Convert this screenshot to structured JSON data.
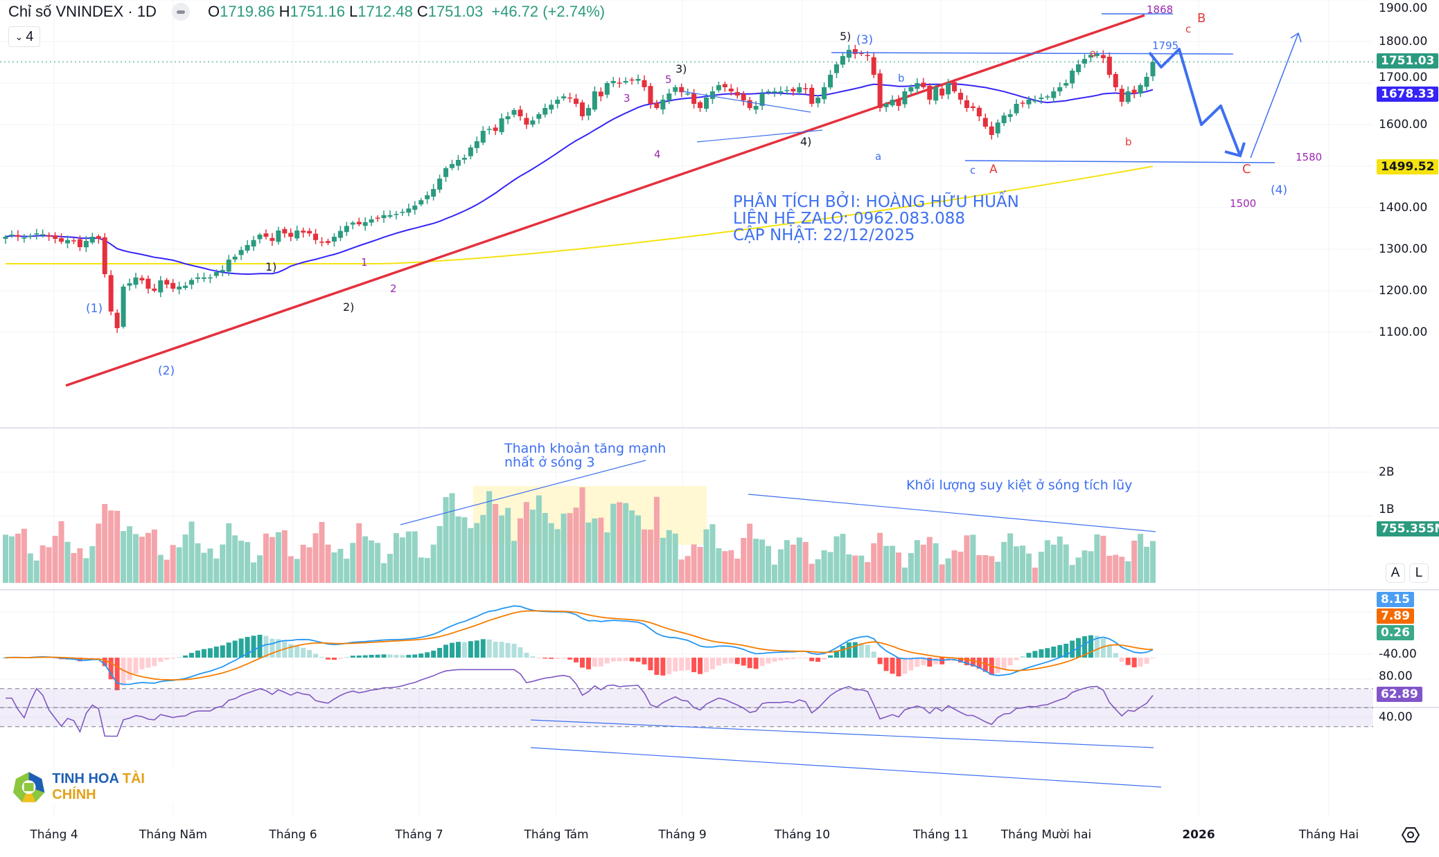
{
  "header": {
    "title": "Chỉ số VNINDEX · 1D",
    "open_label": "O",
    "open": "1719.86",
    "high_label": "H",
    "high": "1751.16",
    "low_label": "L",
    "low": "1712.48",
    "close_label": "C",
    "close": "1751.03",
    "change": "+46.72 (+2.74%)",
    "collapse_count": "4"
  },
  "price_axis": {
    "ticks": [
      "1900.00",
      "1800.00",
      "1700.00",
      "1600.00",
      "1400.00",
      "1300.00",
      "1200.00",
      "1100.00"
    ],
    "badges": [
      {
        "name": "last-price-badge",
        "value": "1751.03",
        "color": "#2b9a7f"
      },
      {
        "name": "ma50-badge",
        "value": "1678.33",
        "color": "#3524f5"
      },
      {
        "name": "ma200-badge",
        "value": "1499.52",
        "color": "#f5e20f"
      }
    ]
  },
  "volume_axis": {
    "ticks": [
      "2B",
      "1B"
    ],
    "badge": "755.355M",
    "auto_label": "A",
    "log_label": "L"
  },
  "macd_axis": {
    "ticks": [
      "-40.00"
    ],
    "badges": [
      {
        "value": "8.15",
        "color": "#4b9ef3"
      },
      {
        "value": "7.89",
        "color": "#f56a00"
      },
      {
        "value": "0.26",
        "color": "#3aa889"
      }
    ]
  },
  "rsi_axis": {
    "ticks": [
      "80.00",
      "40.00"
    ],
    "badge": "62.89",
    "badge_color": "#8155c9"
  },
  "time_axis": [
    "Tháng 4",
    "Tháng Năm",
    "Tháng 6",
    "Tháng 7",
    "Tháng Tám",
    "Tháng 9",
    "Tháng 10",
    "Tháng 11",
    "Tháng Mười hai",
    "2026",
    "Tháng Hai"
  ],
  "annotations": {
    "analyst_line1": "PHÂN TÍCH BỞI: HOÀNG HỮU HUẤN",
    "analyst_line2": "LIÊN HỆ ZALO: 0962.083.088",
    "analyst_line3": "CẬP NHẬT: 22/12/2025",
    "volume_note1_line1": "Thanh khoản tăng mạnh",
    "volume_note1_line2": "nhất ở sóng 3",
    "volume_note2": "Khối lượng suy kiệt ở sóng tích lũy",
    "level_1868": "1868",
    "level_1795": "1795",
    "level_1580": "1580",
    "level_1500": "1500",
    "waves": [
      {
        "text": "(1)",
        "color": "#3d6ff0"
      },
      {
        "text": "(2)",
        "color": "#3d6ff0"
      },
      {
        "text": "(3)",
        "color": "#3d6ff0"
      },
      {
        "text": "(4)",
        "color": "#3d6ff0"
      },
      {
        "text": "1)",
        "color": "#131722"
      },
      {
        "text": "2)",
        "color": "#131722"
      },
      {
        "text": "3)",
        "color": "#131722"
      },
      {
        "text": "4)",
        "color": "#131722"
      },
      {
        "text": "5)",
        "color": "#131722"
      },
      {
        "text": "1",
        "color": "#9c27b0"
      },
      {
        "text": "2",
        "color": "#9c27b0"
      },
      {
        "text": "3",
        "color": "#9c27b0"
      },
      {
        "text": "4",
        "color": "#9c27b0"
      },
      {
        "text": "5",
        "color": "#9c27b0"
      },
      {
        "text": "a",
        "color": "#3d6ff0"
      },
      {
        "text": "b",
        "color": "#3d6ff0"
      },
      {
        "text": "c",
        "color": "#3d6ff0"
      },
      {
        "text": "A",
        "color": "#e53935"
      },
      {
        "text": "a",
        "color": "#e53935"
      },
      {
        "text": "b",
        "color": "#e53935"
      },
      {
        "text": "c",
        "color": "#e53935"
      },
      {
        "text": "B",
        "color": "#e53935"
      },
      {
        "text": "C",
        "color": "#e53935"
      }
    ]
  },
  "logo": {
    "part1": "TINH HOA",
    "part2": "TÀI CHÍNH"
  },
  "colors": {
    "up": "#2b9a7f",
    "down": "#e5303d",
    "vol_up": "#93d3c4",
    "vol_down": "#f4a4aa",
    "ma50": "#3524f5",
    "ma200": "#f5e20f",
    "trend": "#e5303d",
    "annot": "#3d6ff0",
    "rsi": "#7e57c2"
  },
  "chart_data": {
    "type": "candlestick",
    "title": "Chỉ số VNINDEX · 1D",
    "ylim": [
      1080,
      1900
    ],
    "x_range": [
      "2025-03",
      "2026-02"
    ],
    "close_path": [
      1330,
      1335,
      1330,
      1328,
      1332,
      1338,
      1336,
      1330,
      1325,
      1318,
      1322,
      1320,
      1305,
      1320,
      1330,
      1325,
      1240,
      1150,
      1110,
      1210,
      1218,
      1232,
      1225,
      1205,
      1200,
      1225,
      1215,
      1205,
      1210,
      1212,
      1226,
      1232,
      1232,
      1232,
      1245,
      1250,
      1275,
      1282,
      1298,
      1310,
      1322,
      1335,
      1330,
      1320,
      1345,
      1338,
      1330,
      1345,
      1340,
      1338,
      1322,
      1318,
      1315,
      1330,
      1344,
      1356,
      1364,
      1360,
      1365,
      1372,
      1375,
      1382,
      1382,
      1385,
      1390,
      1398,
      1405,
      1418,
      1430,
      1445,
      1470,
      1495,
      1505,
      1515,
      1520,
      1545,
      1560,
      1585,
      1590,
      1585,
      1615,
      1620,
      1635,
      1620,
      1600,
      1610,
      1625,
      1640,
      1648,
      1660,
      1668,
      1665,
      1650,
      1620,
      1640,
      1680,
      1668,
      1700,
      1705,
      1700,
      1705,
      1708,
      1710,
      1690,
      1650,
      1640,
      1660,
      1675,
      1690,
      1678,
      1675,
      1650,
      1640,
      1665,
      1680,
      1695,
      1690,
      1680,
      1670,
      1658,
      1640,
      1645,
      1675,
      1680,
      1680,
      1680,
      1683,
      1680,
      1690,
      1685,
      1650,
      1665,
      1690,
      1720,
      1745,
      1765,
      1780,
      1770,
      1770,
      1765,
      1720,
      1640,
      1650,
      1660,
      1645,
      1680,
      1690,
      1700,
      1690,
      1660,
      1690,
      1670,
      1700,
      1680,
      1660,
      1640,
      1640,
      1620,
      1595,
      1575,
      1605,
      1622,
      1625,
      1650,
      1652,
      1660,
      1658,
      1665,
      1668,
      1680,
      1690,
      1700,
      1730,
      1745,
      1758,
      1768,
      1770,
      1760,
      1720,
      1690,
      1655,
      1680,
      1675,
      1695,
      1715,
      1751.03
    ],
    "ma50_last": 1678.33,
    "ma200_last": 1499.52,
    "levels": [
      1868,
      1795,
      1580,
      1500
    ],
    "volume_last": "755.355M",
    "macd": {
      "macd": 8.15,
      "signal": 7.89,
      "hist": 0.26
    },
    "rsi_last": 62.89,
    "rsi_bands": [
      70,
      50,
      30
    ],
    "projection": [
      1795,
      1775,
      1800,
      1630,
      1665,
      1580,
      1820
    ]
  }
}
